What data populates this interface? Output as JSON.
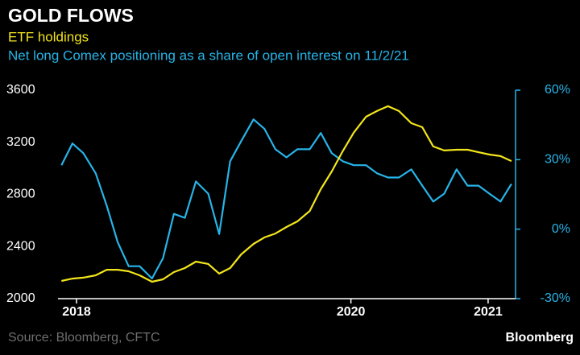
{
  "chart_data": {
    "type": "line",
    "title": "GOLD FLOWS",
    "source": "Source: Bloomberg, CFTC",
    "brand": "Bloomberg",
    "x": [
      2017.89,
      2017.97,
      2018.05,
      2018.14,
      2018.22,
      2018.3,
      2018.38,
      2018.46,
      2018.55,
      2018.63,
      2018.71,
      2018.79,
      2018.87,
      2018.96,
      2019.04,
      2019.12,
      2019.2,
      2019.29,
      2019.37,
      2019.45,
      2019.53,
      2019.61,
      2019.7,
      2019.78,
      2019.86,
      2019.94,
      2020.02,
      2020.11,
      2020.19,
      2020.27,
      2020.35,
      2020.44,
      2020.52,
      2020.6,
      2020.68,
      2020.77,
      2020.85,
      2020.93,
      2021.01,
      2021.09,
      2021.17
    ],
    "xlim": [
      2017.865,
      2021.2
    ],
    "xticks": [
      2018,
      2020,
      2021
    ],
    "ylim": [
      2000,
      3600
    ],
    "yticks": [
      2000,
      2400,
      2800,
      3200,
      3600
    ],
    "y2lim": [
      -30,
      60
    ],
    "y2ticks": [
      {
        "value": -30,
        "label": "-30%"
      },
      {
        "value": 0,
        "label": "0%"
      },
      {
        "value": 30,
        "label": "30%"
      },
      {
        "value": 60,
        "label": "60%"
      }
    ],
    "grid": false,
    "series": [
      {
        "name": "ETF holdings",
        "color": "#f2e51b",
        "values": [
          2136,
          2154,
          2161,
          2179,
          2222,
          2222,
          2210,
          2179,
          2130,
          2148,
          2204,
          2235,
          2284,
          2266,
          2192,
          2235,
          2340,
          2420,
          2470,
          2500,
          2550,
          2593,
          2673,
          2840,
          2976,
          3131,
          3273,
          3396,
          3440,
          3477,
          3440,
          3347,
          3316,
          3168,
          3137,
          3143,
          3143,
          3124,
          3106,
          3094,
          3056
        ]
      },
      {
        "name": "Net long Comex positioning as a share of open interest on 11/2/21",
        "color": "#27b4e8",
        "axis": "y2",
        "values": [
          27.6,
          37.0,
          32.8,
          24.1,
          10.1,
          -5.6,
          -16.0,
          -16.0,
          -21.3,
          -12.6,
          6.6,
          4.9,
          20.6,
          15.3,
          -2.1,
          29.3,
          38.0,
          47.4,
          43.3,
          34.5,
          31.0,
          34.5,
          34.5,
          41.5,
          32.8,
          29.3,
          27.6,
          27.6,
          24.1,
          22.3,
          22.3,
          25.8,
          18.8,
          11.9,
          15.3,
          25.8,
          18.8,
          18.8,
          15.3,
          11.9,
          19.5
        ]
      }
    ]
  }
}
